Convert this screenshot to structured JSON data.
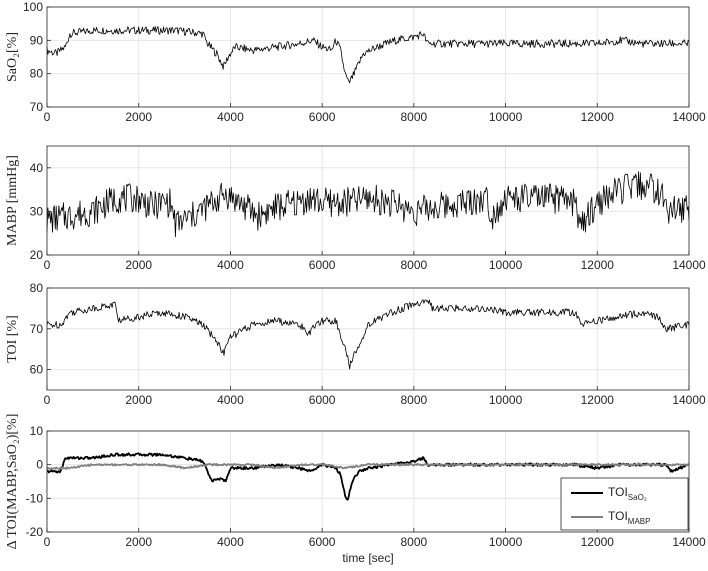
{
  "chart_data": [
    {
      "type": "line",
      "ylabel": "SaO₂[%]",
      "xlim": [
        0,
        14000
      ],
      "ylim": [
        70,
        100
      ],
      "xticks": [
        "0",
        "2000",
        "4000",
        "6000",
        "8000",
        "10000",
        "12000",
        "14000"
      ],
      "yticks": [
        "70",
        "80",
        "90",
        "100"
      ],
      "grid": true,
      "series": [
        {
          "color": "#000000",
          "x": [
            0,
            200,
            400,
            500,
            1000,
            2000,
            2800,
            3400,
            3500,
            3700,
            3850,
            3950,
            4100,
            4500,
            5000,
            5500,
            5800,
            6000,
            6200,
            6300,
            6400,
            6500,
            6580,
            6700,
            6900,
            7200,
            7600,
            8000,
            8200,
            8300,
            8400,
            9000,
            10000,
            11000,
            12000,
            12500,
            13000,
            13500,
            14000
          ],
          "y": [
            87,
            86,
            88,
            92,
            93,
            93,
            93,
            92,
            89,
            86,
            82,
            85,
            88,
            87,
            88,
            89,
            90,
            88,
            87,
            90,
            87,
            80,
            77,
            80,
            86,
            88,
            90,
            91,
            92,
            89,
            89,
            89,
            89,
            89,
            89,
            90,
            89,
            89,
            89
          ]
        }
      ]
    },
    {
      "type": "line",
      "ylabel": "MABP  [mmHg]",
      "xlim": [
        0,
        14000
      ],
      "ylim": [
        20,
        45
      ],
      "xticks": [
        "0",
        "2000",
        "4000",
        "6000",
        "8000",
        "10000",
        "12000",
        "14000"
      ],
      "yticks": [
        "20",
        "30",
        "40"
      ],
      "grid": true,
      "series": [
        {
          "color": "#000000",
          "x": [
            0,
            500,
            1000,
            1500,
            2000,
            2300,
            2500,
            2700,
            2800,
            3200,
            3600,
            3900,
            4200,
            4600,
            5000,
            5500,
            5700,
            6000,
            6500,
            7000,
            7500,
            8000,
            8500,
            9000,
            9600,
            9700,
            10000,
            10500,
            11000,
            11500,
            11700,
            11800,
            12000,
            12500,
            13000,
            13300,
            13600,
            14000
          ],
          "y": [
            28,
            29,
            30,
            33,
            33,
            31,
            32,
            32,
            27,
            29,
            32,
            34,
            32,
            29,
            31,
            32,
            33,
            32,
            32,
            33,
            32,
            30,
            31,
            32,
            33,
            29,
            33,
            33,
            33,
            32,
            26,
            29,
            32,
            35,
            36,
            35,
            30,
            31
          ]
        }
      ]
    },
    {
      "type": "line",
      "ylabel": "TOI [%]",
      "xlim": [
        0,
        14000
      ],
      "ylim": [
        55,
        80
      ],
      "xticks": [
        "0",
        "2000",
        "4000",
        "6000",
        "8000",
        "10000",
        "12000",
        "14000"
      ],
      "yticks": [
        "60",
        "70",
        "80"
      ],
      "grid": true,
      "series": [
        {
          "color": "#000000",
          "x": [
            0,
            300,
            500,
            1000,
            1500,
            1550,
            2000,
            2500,
            3000,
            3400,
            3700,
            3850,
            4000,
            4500,
            5000,
            5500,
            5700,
            6000,
            6300,
            6500,
            6600,
            6800,
            7000,
            7500,
            8000,
            8300,
            8400,
            9000,
            9500,
            10000,
            11000,
            11500,
            11700,
            12000,
            12500,
            13000,
            13300,
            13500,
            14000
          ],
          "y": [
            71,
            71,
            74,
            75,
            76,
            72,
            73,
            74,
            73,
            71,
            67,
            64,
            68,
            71,
            72,
            71,
            69,
            72,
            72,
            65,
            61,
            66,
            71,
            74,
            76,
            77,
            75,
            75,
            75,
            74,
            74,
            74,
            71,
            72,
            73,
            74,
            73,
            70,
            71
          ]
        }
      ]
    },
    {
      "type": "line",
      "ylabel": "Δ TOI(MABP,SaO₂)[%]",
      "xlim": [
        0,
        14000
      ],
      "ylim": [
        -20,
        10
      ],
      "xticks": [
        "0",
        "2000",
        "4000",
        "6000",
        "8000",
        "10000",
        "12000",
        "14000"
      ],
      "xlabel": "time [sec]",
      "yticks": [
        "-20",
        "-10",
        "0",
        "10"
      ],
      "grid": true,
      "legend": "bottom-right",
      "series": [
        {
          "name": "TOI",
          "name_sub": "SaO₂",
          "color": "#000000",
          "x": [
            0,
            300,
            400,
            600,
            1000,
            1500,
            2000,
            2500,
            3000,
            3400,
            3500,
            3600,
            3800,
            3900,
            4000,
            4500,
            5000,
            5500,
            5700,
            6000,
            6300,
            6400,
            6500,
            6550,
            6650,
            6800,
            7000,
            7500,
            8000,
            8200,
            8300,
            9000,
            10000,
            11000,
            11500,
            12000,
            12500,
            13000,
            13500,
            13600,
            14000
          ],
          "y": [
            -2,
            -2,
            2,
            2,
            2,
            3,
            3,
            3,
            2,
            1,
            -2,
            -5,
            -4,
            -5,
            -1,
            -1,
            0,
            -1,
            -2,
            0,
            -1,
            -3,
            -9,
            -11,
            -5,
            -2,
            -1,
            0,
            1,
            2,
            0,
            0,
            0,
            0,
            0,
            -1,
            0,
            0,
            0,
            -2,
            0
          ]
        },
        {
          "name": "TOI",
          "name_sub": "MABP",
          "color": "#808080",
          "x": [
            0,
            500,
            1000,
            1500,
            2000,
            2500,
            3000,
            3500,
            4000,
            4500,
            5000,
            5500,
            6000,
            6500,
            7000,
            7500,
            8000,
            8500,
            9000,
            10000,
            11000,
            12000,
            12500,
            13000,
            13500,
            14000
          ],
          "y": [
            -1,
            -1,
            0,
            0,
            0,
            0,
            -1,
            0,
            0,
            0,
            -1,
            0,
            0,
            -1,
            0,
            0,
            0,
            0,
            0,
            0,
            0,
            0,
            0,
            0,
            0,
            0
          ]
        }
      ]
    }
  ]
}
